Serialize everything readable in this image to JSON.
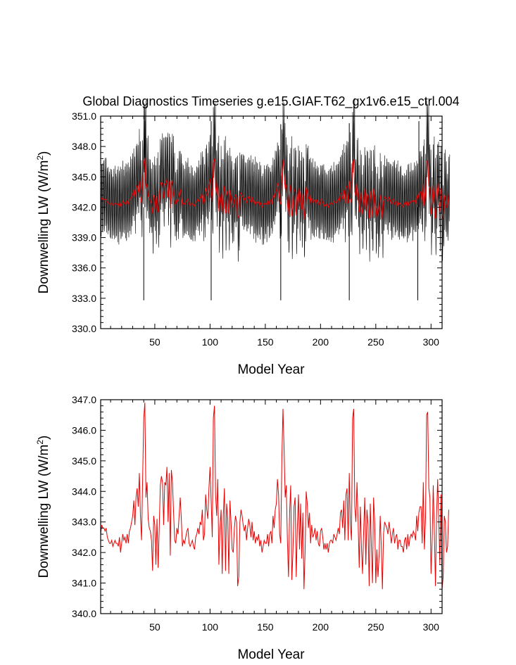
{
  "title": "Global Diagnostics Timeseries g.e15.GIAF.T62_gx1v6.e15_ctrl.004",
  "colors": {
    "monthly": "#000000",
    "annual": "#e60000",
    "frame": "#000000",
    "background": "#ffffff"
  },
  "chart_data": [
    {
      "type": "line",
      "xlabel": "Model Year",
      "ylabel": "Downwelling LW (W/m²)",
      "ylabel_parts": {
        "main": "Downwelling LW (W/m",
        "sup": "2",
        "close": ")"
      },
      "xlim": [
        1,
        310
      ],
      "ylim": [
        330.0,
        351.0
      ],
      "xticks": [
        50,
        100,
        150,
        200,
        250,
        300
      ],
      "xtick_labels": [
        "50",
        "100",
        "150",
        "200",
        "250",
        "300"
      ],
      "yticks": [
        330.0,
        333.0,
        336.0,
        339.0,
        342.0,
        345.0,
        348.0,
        351.0
      ],
      "ytick_labels": [
        "330.0",
        "333.0",
        "336.0",
        "339.0",
        "342.0",
        "345.0",
        "348.0",
        "351.0"
      ],
      "grid": false,
      "series": [
        {
          "style": "monthly",
          "seasonal_range": [
            339.5,
            346.2
          ],
          "extreme_min": [
            [
              40,
              332.8
            ],
            [
              101,
              332.8
            ],
            [
              164,
              332.8
            ],
            [
              226,
              332.8
            ],
            [
              288,
              332.8
            ]
          ],
          "extreme_max": [
            [
              41,
              350.5
            ],
            [
              101,
              350.5
            ],
            [
              164,
              350.2
            ],
            [
              226,
              350.3
            ],
            [
              289,
              350.5
            ]
          ]
        },
        {
          "style": "annual"
        }
      ]
    },
    {
      "type": "line",
      "xlabel": "Model Year",
      "ylabel": "Downwelling LW (W/m²)",
      "ylabel_parts": {
        "main": "Downwelling LW (W/m",
        "sup": "2",
        "close": ")"
      },
      "xlim": [
        1,
        310
      ],
      "ylim": [
        340.0,
        347.0
      ],
      "xticks": [
        50,
        100,
        150,
        200,
        250,
        300
      ],
      "xtick_labels": [
        "50",
        "100",
        "150",
        "200",
        "250",
        "300"
      ],
      "yticks": [
        340.0,
        341.0,
        342.0,
        343.0,
        344.0,
        345.0,
        346.0,
        347.0
      ],
      "ytick_labels": [
        "340.0",
        "341.0",
        "342.0",
        "343.0",
        "344.0",
        "345.0",
        "346.0",
        "347.0"
      ],
      "grid": false,
      "series": [
        {
          "style": "annual",
          "x_start": 1,
          "values": [
            342.6,
            342.9,
            342.8,
            342.8,
            342.7,
            342.8,
            342.5,
            342.4,
            342.3,
            342.3,
            342.4,
            342.2,
            342.3,
            342.4,
            342.3,
            342.3,
            342.2,
            342.5,
            342.0,
            342.3,
            342.6,
            342.4,
            342.5,
            342.3,
            342.6,
            342.3,
            342.7,
            342.8,
            343.0,
            343.2,
            343.7,
            342.9,
            343.8,
            344.1,
            343.5,
            344.6,
            343.2,
            342.4,
            344.4,
            346.4,
            346.9,
            343.8,
            344.3,
            343.1,
            342.8,
            342.7,
            342.4,
            341.4,
            343.2,
            342.9,
            341.6,
            343.1,
            341.5,
            342.8,
            344.2,
            344.5,
            344.3,
            342.9,
            344.3,
            344.2,
            344.8,
            343.0,
            344.6,
            341.9,
            344.7,
            344.3,
            343.3,
            342.4,
            342.3,
            342.8,
            342.6,
            343.2,
            343.8,
            343.1,
            342.2,
            342.4,
            342.3,
            342.5,
            342.7,
            342.8,
            342.3,
            342.2,
            342.3,
            342.4,
            342.2,
            342.1,
            342.5,
            342.6,
            342.8,
            342.6,
            343.0,
            342.9,
            343.4,
            342.4,
            342.6,
            343.9,
            343.4,
            343.1,
            344.1,
            344.8,
            343.7,
            342.5,
            346.4,
            346.8,
            343.9,
            343.2,
            344.4,
            341.6,
            342.8,
            343.4,
            341.3,
            343.2,
            344.1,
            341.4,
            343.6,
            343.1,
            341.3,
            343.7,
            343.0,
            342.1,
            342.0,
            342.8,
            343.2,
            343.0,
            340.9,
            341.2,
            343.0,
            343.4,
            343.2,
            342.9,
            342.7,
            342.9,
            342.4,
            342.8,
            343.1,
            342.9,
            342.5,
            343.0,
            342.4,
            342.7,
            342.3,
            342.5,
            342.4,
            342.6,
            342.2,
            342.4,
            342.0,
            342.2,
            342.4,
            342.3,
            342.3,
            342.6,
            342.2,
            342.6,
            342.7,
            342.3,
            343.2,
            342.8,
            343.4,
            343.6,
            344.4,
            343.9,
            342.6,
            342.3,
            345.1,
            346.7,
            345.4,
            343.8,
            344.2,
            342.4,
            341.2,
            343.3,
            344.2,
            341.1,
            342.0,
            343.5,
            343.8,
            341.2,
            342.8,
            343.9,
            342.1,
            343.6,
            341.8,
            343.3,
            340.8,
            342.0,
            344.0,
            343.6,
            342.8,
            343.3,
            342.3,
            342.9,
            342.5,
            342.6,
            342.8,
            342.4,
            342.7,
            342.3,
            342.2,
            342.7,
            342.8,
            342.5,
            342.1,
            342.3,
            342.1,
            342.3,
            342.0,
            342.3,
            342.4,
            342.4,
            342.3,
            342.6,
            342.5,
            342.4,
            342.6,
            342.8,
            342.6,
            343.3,
            343.4,
            342.8,
            343.7,
            342.4,
            343.9,
            344.1,
            342.4,
            344.6,
            342.9,
            342.4,
            346.4,
            346.7,
            343.5,
            343.0,
            344.3,
            343.0,
            341.5,
            343.5,
            342.2,
            341.3,
            342.7,
            343.8,
            341.6,
            343.4,
            342.9,
            340.9,
            343.6,
            342.2,
            341.0,
            343.8,
            343.0,
            341.0,
            342.1,
            341.2,
            341.9,
            343.2,
            342.2,
            340.8,
            342.6,
            343.0,
            342.9,
            342.8,
            342.6,
            343.0,
            342.7,
            342.3,
            342.6,
            342.8,
            342.3,
            342.5,
            342.6,
            342.1,
            342.4,
            342.4,
            342.2,
            342.2,
            342.0,
            342.4,
            342.5,
            342.1,
            342.6,
            342.2,
            342.5,
            342.6,
            342.5,
            342.7,
            342.6,
            342.4,
            343.2,
            342.7,
            343.3,
            343.5,
            343.5,
            342.3,
            344.3,
            342.1,
            343.1,
            346.5,
            346.6,
            344.1,
            343.8,
            341.3,
            342.4,
            344.2,
            342.7,
            340.9,
            343.2,
            344.4,
            343.1,
            341.6,
            343.9,
            340.8,
            341.2,
            343.2,
            343.0,
            342.0,
            342.2,
            343.4
          ]
        }
      ]
    }
  ]
}
